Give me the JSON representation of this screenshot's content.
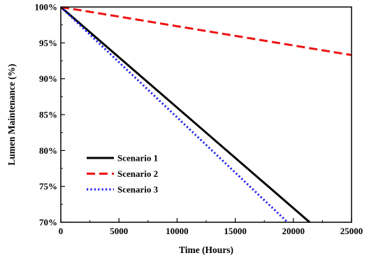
{
  "chart_data": {
    "type": "line",
    "title": "",
    "xlabel": "Time (Hours)",
    "ylabel": "Lumen Maintenance (%)",
    "xlim": [
      0,
      25000
    ],
    "ylim": [
      70,
      100
    ],
    "x_ticks": [
      0,
      5000,
      10000,
      15000,
      20000,
      25000
    ],
    "x_tick_labels": [
      "0",
      "5000",
      "10000",
      "15000",
      "20000",
      "25000"
    ],
    "y_ticks": [
      70,
      75,
      80,
      85,
      90,
      95,
      100
    ],
    "y_tick_labels": [
      "70%",
      "75%",
      "80%",
      "85%",
      "90%",
      "95%",
      "100%"
    ],
    "grid": false,
    "legend_position": "bottom-left",
    "series": [
      {
        "name": "Scenario 1",
        "color": "#000000",
        "dash": "solid",
        "x": [
          0,
          21400
        ],
        "y": [
          100,
          70
        ]
      },
      {
        "name": "Scenario 2",
        "color": "#ee1111",
        "dash": "dashed",
        "x": [
          0,
          25000
        ],
        "y": [
          100,
          93.3
        ]
      },
      {
        "name": "Scenario 3",
        "color": "#1a1aee",
        "dash": "dotted",
        "x": [
          0,
          19500
        ],
        "y": [
          100,
          70
        ]
      }
    ]
  }
}
